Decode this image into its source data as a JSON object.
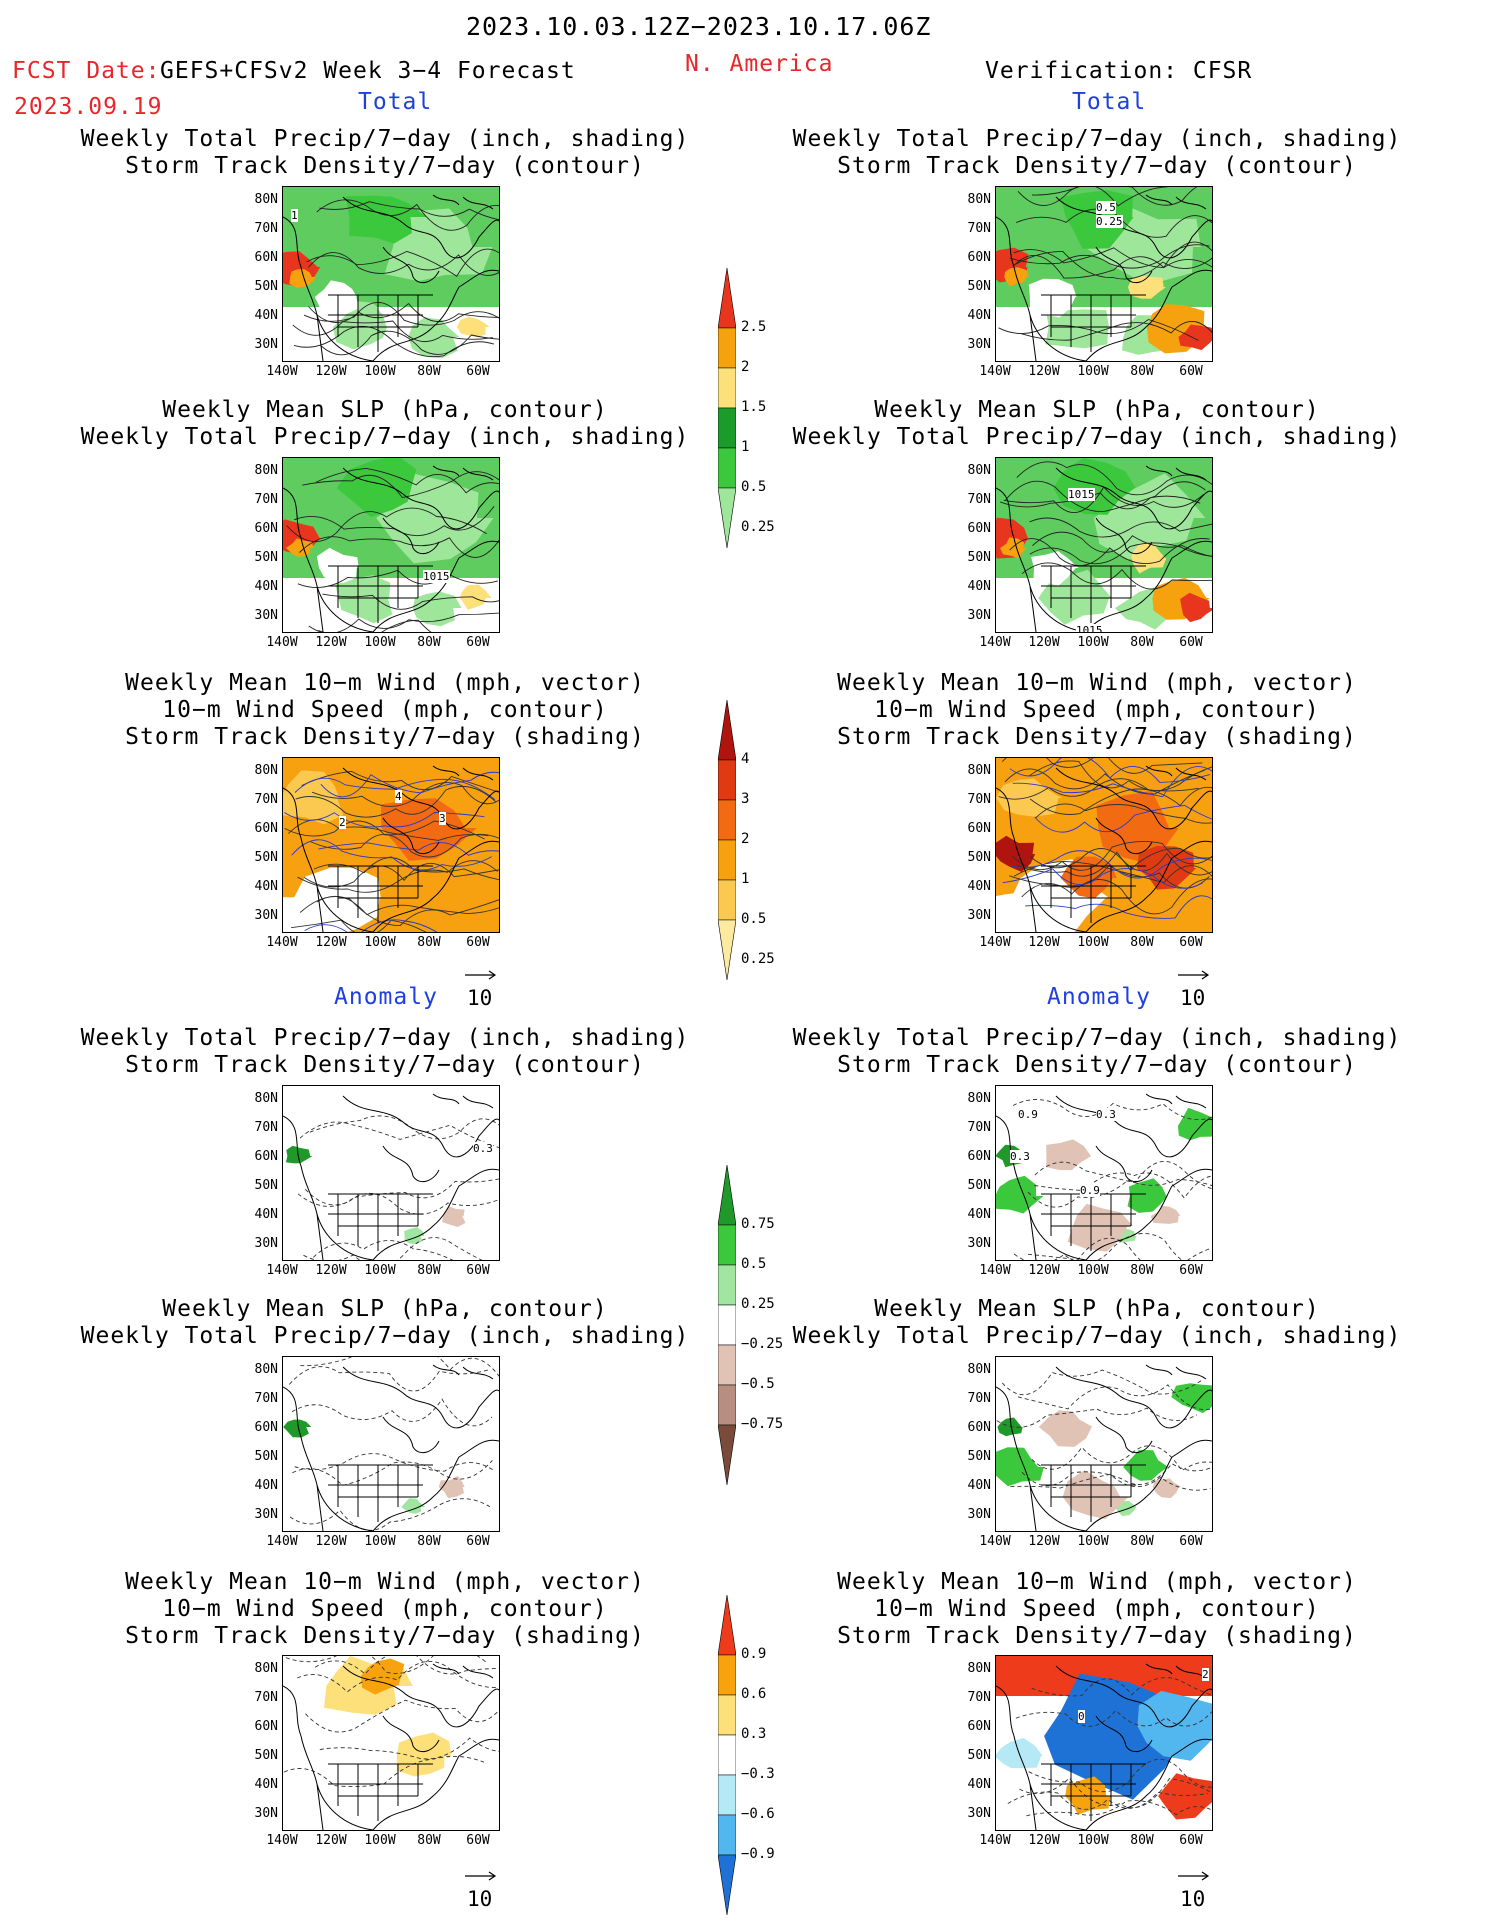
{
  "header": {
    "period": "2023.10.03.12Z−2023.10.17.06Z",
    "fcst_date_label": "FCST Date:",
    "forecast_title": "GEFS+CFSv2 Week 3−4 Forecast",
    "region": "N. America",
    "fcst_date": "2023.09.19",
    "verification": "Verification: CFSR"
  },
  "sections": {
    "total": "Total",
    "anomaly": "Anomaly"
  },
  "panel_titles": {
    "precip_storm": [
      "Weekly Total Precip/7−day (inch, shading)",
      "Storm Track Density/7−day (contour)"
    ],
    "slp_precip": [
      "Weekly Mean SLP (hPa, contour)",
      "Weekly Total Precip/7−day (inch, shading)"
    ],
    "wind_storm": [
      "Weekly Mean 10−m Wind (mph, vector)",
      "10−m Wind Speed (mph, contour)",
      "Storm Track Density/7−day (shading)"
    ]
  },
  "axes": {
    "lat_ticks": [
      "80N",
      "70N",
      "60N",
      "50N",
      "40N",
      "30N"
    ],
    "lon_ticks": [
      "140W",
      "120W",
      "100W",
      "80W",
      "60W"
    ]
  },
  "vector_reference": "10",
  "contour_labels": {
    "fcst_total_precip": "1",
    "fcst_total_slp": "1015",
    "verif_total_precip_a": "0.5",
    "verif_total_precip_b": "0.25",
    "verif_total_slp_a": "1015",
    "verif_total_slp_b": "1015",
    "fcst_total_wind_a": "4",
    "fcst_total_wind_b": "2",
    "fcst_total_wind_c": "3",
    "fcst_anom_precip": "0.3",
    "verif_anom_precip_a": "0.9",
    "verif_anom_precip_b": "0.3",
    "verif_anom_precip_c": "0.3",
    "verif_anom_precip_d": "0.9",
    "verif_anom_wind_a": "0",
    "verif_anom_wind_b": "2"
  },
  "colorbars": {
    "precip_total": {
      "labels": [
        "2.5",
        "2",
        "1.5",
        "1",
        "0.5",
        "0.25"
      ],
      "colors": [
        "#e8351d",
        "#f6a20e",
        "#fde07a",
        "#1a9b2a",
        "#3cc83c",
        "#9ee69a"
      ]
    },
    "storm_total": {
      "labels": [
        "4",
        "3",
        "2",
        "1",
        "0.5",
        "0.25"
      ],
      "colors": [
        "#b0140e",
        "#e03a13",
        "#f26a12",
        "#f7a010",
        "#fbc94f",
        "#fdeaa0"
      ]
    },
    "precip_anom": {
      "labels": [
        "0.75",
        "0.5",
        "0.25",
        "−0.25",
        "−0.5",
        "−0.75"
      ],
      "colors": [
        "#1f9a2a",
        "#3cc83c",
        "#a0e6a0",
        "#ffffff",
        "#e1c3b6",
        "#b88e80",
        "#7a4a3a"
      ]
    },
    "storm_anom": {
      "labels": [
        "0.9",
        "0.6",
        "0.3",
        "−0.3",
        "−0.6",
        "−0.9"
      ],
      "colors": [
        "#ee3b1c",
        "#f8a30e",
        "#fde07a",
        "#ffffff",
        "#b5e9f5",
        "#52b6ef",
        "#1e72d6"
      ]
    }
  }
}
